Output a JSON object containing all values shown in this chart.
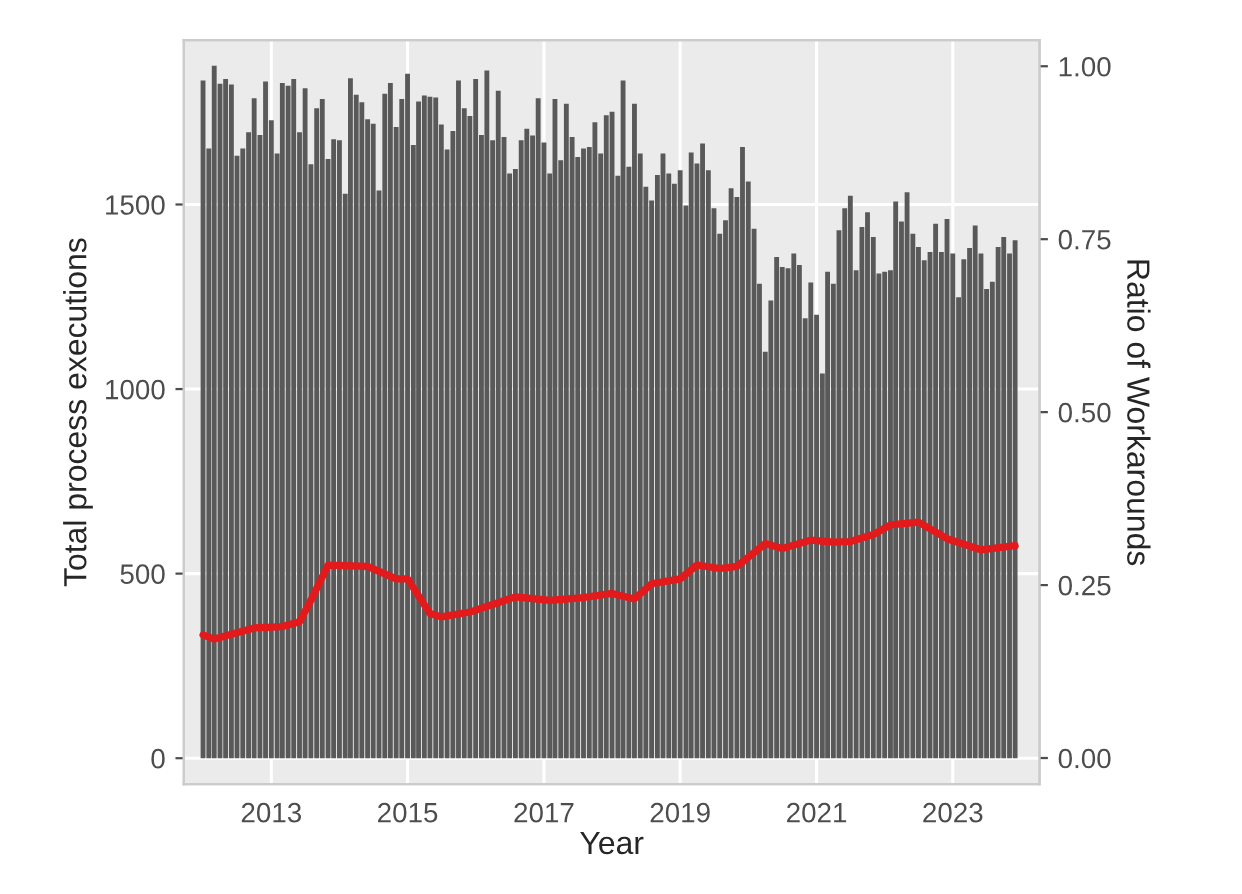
{
  "chart_data": {
    "type": "bar",
    "xlabel": "Year",
    "ylabel": "Total process executions",
    "y2label": "Ratio of Workarounds",
    "x": [
      "2012-01",
      "2012-02",
      "2012-03",
      "2012-04",
      "2012-05",
      "2012-06",
      "2012-07",
      "2012-08",
      "2012-09",
      "2012-10",
      "2012-11",
      "2012-12",
      "2013-01",
      "2013-02",
      "2013-03",
      "2013-04",
      "2013-05",
      "2013-06",
      "2013-07",
      "2013-08",
      "2013-09",
      "2013-10",
      "2013-11",
      "2013-12",
      "2014-01",
      "2014-02",
      "2014-03",
      "2014-04",
      "2014-05",
      "2014-06",
      "2014-07",
      "2014-08",
      "2014-09",
      "2014-10",
      "2014-11",
      "2014-12",
      "2015-01",
      "2015-02",
      "2015-03",
      "2015-04",
      "2015-05",
      "2015-06",
      "2015-07",
      "2015-08",
      "2015-09",
      "2015-10",
      "2015-11",
      "2015-12",
      "2016-01",
      "2016-02",
      "2016-03",
      "2016-04",
      "2016-05",
      "2016-06",
      "2016-07",
      "2016-08",
      "2016-09",
      "2016-10",
      "2016-11",
      "2016-12",
      "2017-01",
      "2017-02",
      "2017-03",
      "2017-04",
      "2017-05",
      "2017-06",
      "2017-07",
      "2017-08",
      "2017-09",
      "2017-10",
      "2017-11",
      "2017-12",
      "2018-01",
      "2018-02",
      "2018-03",
      "2018-04",
      "2018-05",
      "2018-06",
      "2018-07",
      "2018-08",
      "2018-09",
      "2018-10",
      "2018-11",
      "2018-12",
      "2019-01",
      "2019-02",
      "2019-03",
      "2019-04",
      "2019-05",
      "2019-06",
      "2019-07",
      "2019-08",
      "2019-09",
      "2019-10",
      "2019-11",
      "2019-12",
      "2020-01",
      "2020-02",
      "2020-03",
      "2020-04",
      "2020-05",
      "2020-06",
      "2020-07",
      "2020-08",
      "2020-09",
      "2020-10",
      "2020-11",
      "2020-12",
      "2021-01",
      "2021-02",
      "2021-03",
      "2021-04",
      "2021-05",
      "2021-06",
      "2021-07",
      "2021-08",
      "2021-09",
      "2021-10",
      "2021-11",
      "2021-12",
      "2022-01",
      "2022-02",
      "2022-03",
      "2022-04",
      "2022-05",
      "2022-06",
      "2022-07",
      "2022-08",
      "2022-09",
      "2022-10",
      "2022-11",
      "2022-12",
      "2023-01",
      "2023-02",
      "2023-03",
      "2023-04",
      "2023-05",
      "2023-06",
      "2023-07",
      "2023-08",
      "2023-09",
      "2023-10",
      "2023-11",
      "2023-12"
    ],
    "series": [
      {
        "color": "#595959",
        "values": [
          1836,
          1652,
          1876,
          1827,
          1840,
          1825,
          1632,
          1652,
          1696,
          1788,
          1688,
          1833,
          1728,
          1638,
          1829,
          1822,
          1840,
          1696,
          1815,
          1609,
          1761,
          1786,
          1623,
          1677,
          1674,
          1529,
          1842,
          1797,
          1777,
          1731,
          1719,
          1538,
          1800,
          1829,
          1710,
          1786,
          1854,
          1661,
          1779,
          1795,
          1792,
          1790,
          1717,
          1649,
          1699,
          1836,
          1761,
          1740,
          1840,
          1688,
          1863,
          1674,
          1808,
          1683,
          1584,
          1596,
          1674,
          1705,
          1687,
          1788,
          1668,
          1584,
          1786,
          1620,
          1773,
          1683,
          1629,
          1652,
          1656,
          1723,
          1638,
          1742,
          1751,
          1578,
          1836,
          1602,
          1773,
          1638,
          1548,
          1511,
          1580,
          1638,
          1584,
          1556,
          1593,
          1497,
          1641,
          1611,
          1665,
          1593,
          1490,
          1421,
          1457,
          1544,
          1520,
          1656,
          1562,
          1434,
          1285,
          1101,
          1240,
          1358,
          1331,
          1327,
          1367,
          1336,
          1192,
          1289,
          1201,
          1042,
          1318,
          1285,
          1430,
          1490,
          1524,
          1322,
          1439,
          1479,
          1412,
          1313,
          1318,
          1322,
          1508,
          1454,
          1533,
          1421,
          1385,
          1349,
          1371,
          1448,
          1371,
          1461,
          1367,
          1249,
          1352,
          1382,
          1443,
          1367,
          1271,
          1291,
          1385,
          1412,
          1367,
          1403
        ]
      },
      {
        "type": "line",
        "axis": "y2",
        "color": "#e31a1c",
        "x": [
          "2012-01",
          "2012-03",
          "2012-10",
          "2013-03",
          "2013-06",
          "2013-08",
          "2013-11",
          "2014-06",
          "2014-11",
          "2015-01",
          "2015-05",
          "2015-07",
          "2015-12",
          "2016-08",
          "2017-02",
          "2017-08",
          "2018-01",
          "2018-05",
          "2018-08",
          "2019-01",
          "2019-04",
          "2019-08",
          "2019-11",
          "2020-04",
          "2020-07",
          "2020-12",
          "2021-04",
          "2021-07",
          "2021-11",
          "2022-02",
          "2022-07",
          "2022-12",
          "2023-06",
          "2023-12"
        ],
        "values": [
          0.178,
          0.172,
          0.188,
          0.19,
          0.197,
          0.228,
          0.279,
          0.277,
          0.259,
          0.259,
          0.209,
          0.204,
          0.211,
          0.233,
          0.228,
          0.232,
          0.238,
          0.23,
          0.252,
          0.259,
          0.279,
          0.274,
          0.277,
          0.31,
          0.303,
          0.315,
          0.312,
          0.313,
          0.323,
          0.337,
          0.341,
          0.317,
          0.301,
          0.307
        ]
      }
    ],
    "xlim": [
      "2011-09-20",
      "2024-04-10"
    ],
    "xticks": [
      {
        "value": "2013-01-01",
        "label": "2013"
      },
      {
        "value": "2015-01-01",
        "label": "2015"
      },
      {
        "value": "2017-01-01",
        "label": "2017"
      },
      {
        "value": "2019-01-01",
        "label": "2019"
      },
      {
        "value": "2021-01-01",
        "label": "2021"
      },
      {
        "value": "2023-01-01",
        "label": "2023"
      }
    ],
    "ylim": [
      -70,
      1945
    ],
    "yticks": [
      0,
      500,
      1000,
      1500
    ],
    "y2lim": [
      -0.0376,
      1.0376
    ],
    "y2ticks": [
      {
        "value": 0,
        "label": "0.00"
      },
      {
        "value": 0.25,
        "label": "0.25"
      },
      {
        "value": 0.5,
        "label": "0.50"
      },
      {
        "value": 0.75,
        "label": "0.75"
      },
      {
        "value": 1,
        "label": "1.00"
      }
    ],
    "grid": true,
    "legend": false,
    "marker": "none",
    "line_style": "solid"
  }
}
